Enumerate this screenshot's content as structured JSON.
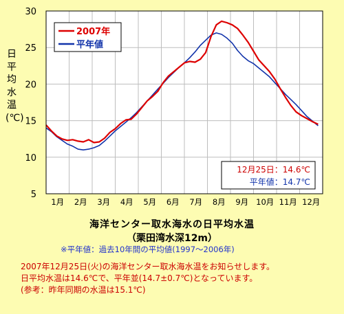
{
  "chart_data": {
    "type": "line",
    "ylabel": "日平均水温(℃)",
    "ylim": [
      5,
      30
    ],
    "yticks": [
      5,
      10,
      15,
      20,
      25,
      30
    ],
    "x_tick_labels": [
      "1月",
      "2月",
      "3月",
      "4月",
      "5月",
      "6月",
      "7月",
      "8月",
      "9月",
      "10月",
      "11月",
      "12月"
    ],
    "x_unit": "day of year",
    "xlim": [
      1,
      365
    ],
    "grid": true,
    "legend_position": "top-left",
    "series": [
      {
        "name": "2007年",
        "color": "#dd0000",
        "x": [
          1,
          8,
          15,
          22,
          29,
          36,
          43,
          50,
          57,
          64,
          71,
          78,
          85,
          92,
          99,
          106,
          113,
          120,
          127,
          134,
          141,
          148,
          155,
          162,
          169,
          176,
          183,
          190,
          197,
          204,
          211,
          218,
          225,
          232,
          239,
          246,
          253,
          260,
          267,
          274,
          281,
          288,
          295,
          302,
          309,
          316,
          323,
          330,
          337,
          344,
          351,
          359
        ],
        "values": [
          14.4,
          13.6,
          12.9,
          12.5,
          12.3,
          12.4,
          12.2,
          12.1,
          12.4,
          12.0,
          12.1,
          12.6,
          13.4,
          13.9,
          14.6,
          15.1,
          15.2,
          15.9,
          16.8,
          17.7,
          18.3,
          19.0,
          20.2,
          21.1,
          21.7,
          22.3,
          22.9,
          23.1,
          23.0,
          23.4,
          24.3,
          26.5,
          28.1,
          28.6,
          28.4,
          28.1,
          27.6,
          26.7,
          25.7,
          24.5,
          23.3,
          22.5,
          21.7,
          20.7,
          19.4,
          18.2,
          17.1,
          16.2,
          15.7,
          15.3,
          14.9,
          14.5
        ]
      },
      {
        "name": "平年値",
        "color": "#1133aa",
        "x": [
          1,
          8,
          15,
          22,
          29,
          36,
          43,
          50,
          57,
          64,
          71,
          78,
          85,
          92,
          99,
          106,
          113,
          120,
          127,
          134,
          141,
          148,
          155,
          162,
          169,
          176,
          183,
          190,
          197,
          204,
          211,
          218,
          225,
          232,
          239,
          246,
          253,
          260,
          267,
          274,
          281,
          288,
          295,
          302,
          309,
          316,
          323,
          330,
          337,
          344,
          351,
          359
        ],
        "values": [
          14.0,
          13.5,
          12.8,
          12.3,
          11.8,
          11.5,
          11.1,
          11.0,
          11.1,
          11.3,
          11.6,
          12.2,
          12.9,
          13.6,
          14.2,
          14.8,
          15.4,
          16.1,
          16.9,
          17.7,
          18.5,
          19.3,
          20.1,
          20.9,
          21.6,
          22.3,
          22.9,
          23.6,
          24.4,
          25.3,
          26.0,
          26.7,
          27.0,
          26.8,
          26.3,
          25.6,
          24.6,
          23.8,
          23.2,
          22.8,
          22.2,
          21.6,
          21.0,
          20.2,
          19.4,
          18.6,
          17.9,
          17.2,
          16.4,
          15.6,
          15.0,
          14.3
        ]
      }
    ],
    "annotation": {
      "line1": "12月25日：14.6℃",
      "line2": "平年値：14.7℃",
      "color1": "#cc0000",
      "color2": "#1133aa"
    }
  },
  "caption": {
    "title": "海洋センター取水海水の日平均水温",
    "subtitle": "（栗田湾水深12m）",
    "note": "※平年値：過去10年間の平均値(1997～2006年)"
  },
  "notice": {
    "line1": "2007年12月25日(火)の海洋センター取水海水温をお知らせします。",
    "line2": "日平均水温は14.6℃で、平年並(14.7±0.7℃)となっています。",
    "line3": "(参考：昨年同期の水温は15.1℃)"
  },
  "colors": {
    "background": "#fdfcb2",
    "plot_area": "#ffffff",
    "grid": "#bdbdbd"
  }
}
